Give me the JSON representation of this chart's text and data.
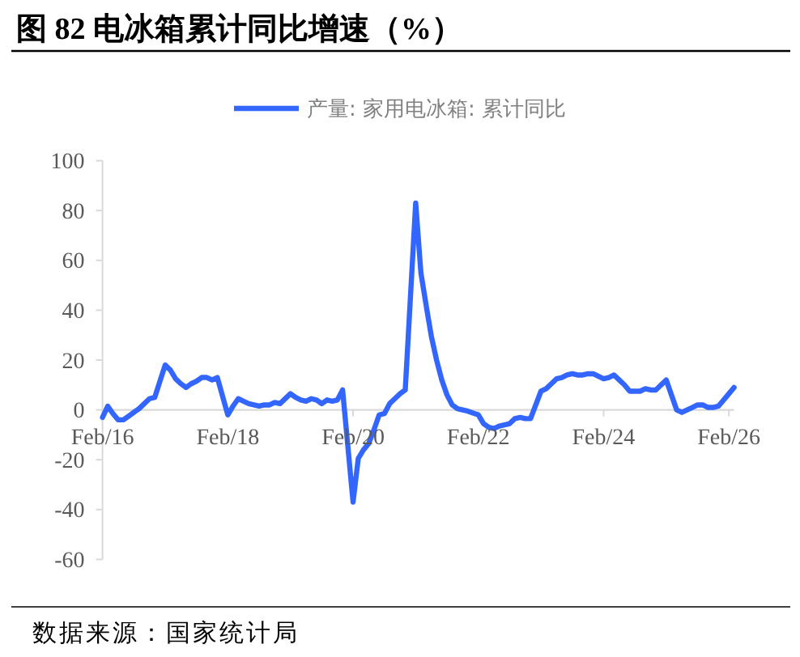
{
  "chart_data": {
    "type": "line",
    "title": "图 82 电冰箱累计同比增速（%）",
    "annotations": [
      "数据来源：国家统计局"
    ],
    "x": [
      "2016-02",
      "2016-03",
      "2016-04",
      "2016-05",
      "2016-06",
      "2016-07",
      "2016-08",
      "2016-09",
      "2016-10",
      "2016-11",
      "2016-12",
      "2017-02",
      "2017-03",
      "2017-04",
      "2017-05",
      "2017-06",
      "2017-07",
      "2017-08",
      "2017-09",
      "2017-10",
      "2017-11",
      "2017-12",
      "2018-02",
      "2018-03",
      "2018-04",
      "2018-05",
      "2018-06",
      "2018-07",
      "2018-08",
      "2018-09",
      "2018-10",
      "2018-11",
      "2018-12",
      "2019-02",
      "2019-03",
      "2019-04",
      "2019-05",
      "2019-06",
      "2019-07",
      "2019-08",
      "2019-09",
      "2019-10",
      "2019-11",
      "2019-12",
      "2020-02",
      "2020-03",
      "2020-04",
      "2020-05",
      "2020-06",
      "2020-07",
      "2020-08",
      "2020-09",
      "2020-10",
      "2020-11",
      "2020-12",
      "2021-02",
      "2021-03",
      "2021-04",
      "2021-05",
      "2021-06",
      "2021-07",
      "2021-08",
      "2021-09",
      "2021-10",
      "2021-11",
      "2021-12",
      "2022-02",
      "2022-03",
      "2022-04",
      "2022-05",
      "2022-06",
      "2022-07",
      "2022-08",
      "2022-09",
      "2022-10",
      "2022-11",
      "2022-12",
      "2023-02",
      "2023-03",
      "2023-04",
      "2023-05",
      "2023-06",
      "2023-07",
      "2023-08",
      "2023-09",
      "2023-10",
      "2023-11",
      "2023-12",
      "2024-02",
      "2024-03",
      "2024-04",
      "2024-05",
      "2024-06",
      "2024-07",
      "2024-08",
      "2024-09",
      "2024-10",
      "2024-11",
      "2024-12",
      "2025-02",
      "2025-03",
      "2025-04",
      "2025-05",
      "2025-06",
      "2025-07",
      "2025-08",
      "2025-09",
      "2025-10",
      "2025-11",
      "2025-12",
      "2026-02",
      "2026-03"
    ],
    "series": [
      {
        "name": "产量: 家用电冰箱: 累计同比",
        "color": "#3366ff",
        "values": [
          -3,
          1.5,
          -1.5,
          -4,
          -4,
          -2.5,
          -1,
          0.5,
          2.5,
          4.5,
          5,
          18,
          16,
          12.5,
          10.5,
          9,
          10.5,
          11.5,
          13,
          13,
          12,
          13,
          -2,
          1.5,
          4.5,
          3.5,
          2.5,
          2,
          1.5,
          2,
          2,
          3,
          2.5,
          6.5,
          5,
          4,
          3.5,
          4.5,
          4,
          2.5,
          4,
          3.5,
          4,
          8,
          -37,
          -19.5,
          -16,
          -13.5,
          -8,
          -2,
          -1.5,
          2.5,
          4.5,
          6.5,
          8,
          83,
          55,
          42,
          29.5,
          20,
          12,
          6,
          2,
          0.5,
          0,
          -0.5,
          -2,
          -5.5,
          -7,
          -7.5,
          -6.5,
          -6,
          -5.5,
          -3.5,
          -3,
          -3.5,
          -3.5,
          7.5,
          8.5,
          10.5,
          12.5,
          13,
          14,
          14.5,
          14,
          14,
          14.5,
          14.5,
          12.5,
          13,
          14,
          12,
          10,
          7.5,
          7.5,
          7.5,
          8.5,
          8,
          8,
          12,
          6,
          0,
          -1,
          0,
          1,
          2,
          2,
          1,
          1,
          1.5,
          6.5,
          9
        ]
      }
    ],
    "xlim": [
      "2016-02",
      "2026-03"
    ],
    "xticks": [
      {
        "value": "2016-02",
        "label": "Feb/16"
      },
      {
        "value": "2018-02",
        "label": "Feb/18"
      },
      {
        "value": "2020-02",
        "label": "Feb/20"
      },
      {
        "value": "2022-02",
        "label": "Feb/22"
      },
      {
        "value": "2024-02",
        "label": "Feb/24"
      },
      {
        "value": "2026-02",
        "label": "Feb/26"
      }
    ],
    "ylim": [
      -60,
      100
    ],
    "yticks": [
      -60,
      -40,
      -20,
      0,
      20,
      40,
      60,
      80,
      100
    ],
    "legend": "top"
  }
}
